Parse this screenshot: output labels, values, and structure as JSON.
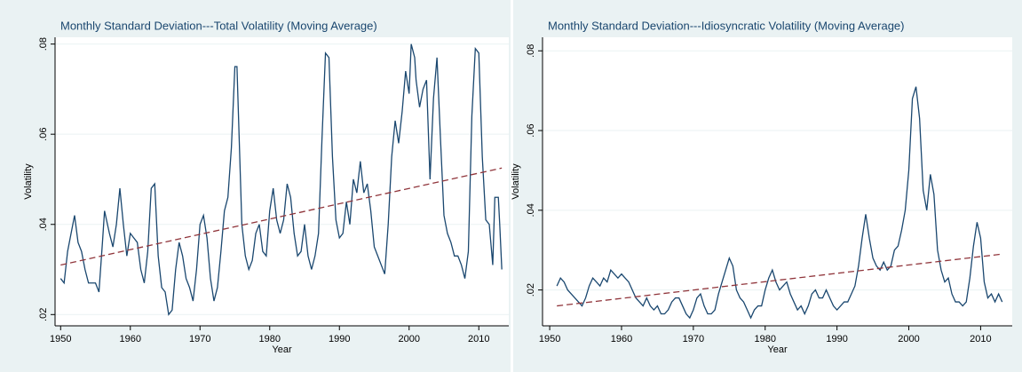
{
  "chart_data": [
    {
      "type": "line",
      "title": "Monthly Standard Deviation---Total Volatility (Moving Average)",
      "xlabel": "Year",
      "ylabel": "Volatility",
      "xlim": [
        1949.2,
        2014.3
      ],
      "xticks": [
        1950,
        1960,
        1970,
        1980,
        1990,
        2000,
        2010
      ],
      "ylim": [
        0.0175,
        0.0815
      ],
      "yticks": [
        {
          "value": 0.02,
          "label": ".02"
        },
        {
          "value": 0.04,
          "label": ".04"
        },
        {
          "value": 0.06,
          "label": ".06"
        },
        {
          "value": 0.08,
          "label": ".08"
        }
      ],
      "grid": true,
      "series": [
        {
          "color": "#1a476f",
          "dash": false,
          "x": [
            1950,
            1950.5,
            1951,
            1951.5,
            1952,
            1952.5,
            1953,
            1953.5,
            1954,
            1955,
            1955.5,
            1956,
            1956.3,
            1957,
            1957.5,
            1958,
            1958.5,
            1959,
            1959.5,
            1960,
            1960.5,
            1961,
            1961.5,
            1962,
            1962.5,
            1963,
            1963.5,
            1964,
            1964.5,
            1965,
            1965.5,
            1966,
            1966.5,
            1967,
            1967.5,
            1968,
            1968.5,
            1969,
            1969.5,
            1970,
            1970.5,
            1971,
            1971.5,
            1972,
            1972.5,
            1973,
            1973.5,
            1974,
            1974.5,
            1975,
            1975.3,
            1975.8,
            1976,
            1976.5,
            1977,
            1977.5,
            1978,
            1978.5,
            1979,
            1979.5,
            1980,
            1980.5,
            1981,
            1981.5,
            1982,
            1982.5,
            1983,
            1983.5,
            1984,
            1984.5,
            1985,
            1985.5,
            1986,
            1986.5,
            1987,
            1987.5,
            1988,
            1988.5,
            1989,
            1989.5,
            1990,
            1990.5,
            1991,
            1991.5,
            1992,
            1992.5,
            1993,
            1993.5,
            1994,
            1994.5,
            1995,
            1995.5,
            1996,
            1996.5,
            1997,
            1997.5,
            1998,
            1998.5,
            1999,
            1999.5,
            2000,
            2000.3,
            2000.8,
            2001,
            2001.5,
            2002,
            2002.5,
            2003,
            2003.5,
            2004,
            2004.5,
            2005,
            2005.5,
            2006,
            2006.5,
            2007,
            2007.5,
            2008,
            2008.5,
            2009,
            2009.5,
            2010,
            2010.5,
            2011,
            2011.5,
            2012,
            2012.3,
            2012.8,
            2013,
            2013.3
          ],
          "values": [
            0.028,
            0.027,
            0.034,
            0.038,
            0.042,
            0.036,
            0.034,
            0.03,
            0.027,
            0.027,
            0.025,
            0.036,
            0.043,
            0.038,
            0.035,
            0.04,
            0.048,
            0.04,
            0.033,
            0.038,
            0.037,
            0.036,
            0.03,
            0.027,
            0.034,
            0.048,
            0.049,
            0.033,
            0.026,
            0.025,
            0.02,
            0.021,
            0.03,
            0.036,
            0.033,
            0.028,
            0.026,
            0.023,
            0.03,
            0.04,
            0.042,
            0.037,
            0.028,
            0.023,
            0.026,
            0.034,
            0.043,
            0.046,
            0.057,
            0.075,
            0.075,
            0.05,
            0.04,
            0.033,
            0.03,
            0.032,
            0.038,
            0.04,
            0.034,
            0.033,
            0.043,
            0.048,
            0.041,
            0.038,
            0.041,
            0.049,
            0.046,
            0.038,
            0.033,
            0.034,
            0.04,
            0.033,
            0.03,
            0.033,
            0.038,
            0.059,
            0.078,
            0.077,
            0.055,
            0.041,
            0.037,
            0.038,
            0.045,
            0.04,
            0.05,
            0.047,
            0.054,
            0.047,
            0.049,
            0.043,
            0.035,
            0.033,
            0.031,
            0.029,
            0.04,
            0.055,
            0.063,
            0.058,
            0.065,
            0.074,
            0.069,
            0.08,
            0.077,
            0.072,
            0.066,
            0.07,
            0.072,
            0.05,
            0.068,
            0.077,
            0.059,
            0.042,
            0.038,
            0.036,
            0.033,
            0.033,
            0.031,
            0.028,
            0.034,
            0.064,
            0.079,
            0.078,
            0.055,
            0.041,
            0.04,
            0.031,
            0.046,
            0.046,
            0.04,
            0.03
          ]
        },
        {
          "color": "#90353b",
          "dash": true,
          "x": [
            1950,
            2013.3
          ],
          "values": [
            0.031,
            0.0525
          ]
        }
      ]
    },
    {
      "type": "line",
      "title": "Monthly Standard Deviation---Idiosyncratic Volatility (Moving Average)",
      "xlabel": "Year",
      "ylabel": "Volatility",
      "xlim": [
        1949.0,
        2014.4
      ],
      "xticks": [
        1950,
        1960,
        1970,
        1980,
        1990,
        2000,
        2010
      ],
      "ylim": [
        0.011,
        0.0834
      ],
      "yticks": [
        {
          "value": 0.02,
          "label": ".02"
        },
        {
          "value": 0.04,
          "label": ".04"
        },
        {
          "value": 0.06,
          "label": ".06"
        },
        {
          "value": 0.08,
          "label": ".08"
        }
      ],
      "grid": true,
      "series": [
        {
          "color": "#1a476f",
          "dash": false,
          "x": [
            1951,
            1951.5,
            1952,
            1952.5,
            1953,
            1954,
            1954.5,
            1955,
            1955.5,
            1956,
            1956.5,
            1957,
            1957.5,
            1958,
            1958.5,
            1959,
            1959.5,
            1960,
            1960.5,
            1961,
            1961.5,
            1962,
            1962.5,
            1963,
            1963.5,
            1964,
            1964.5,
            1965,
            1965.5,
            1966,
            1966.5,
            1967,
            1967.5,
            1968,
            1968.5,
            1969,
            1969.5,
            1970,
            1970.5,
            1971,
            1971.5,
            1972,
            1972.5,
            1973,
            1973.5,
            1974,
            1974.5,
            1975,
            1975.5,
            1976,
            1976.5,
            1977,
            1977.5,
            1978,
            1978.5,
            1979,
            1979.5,
            1980,
            1980.5,
            1981,
            1981.5,
            1982,
            1982.5,
            1983,
            1983.5,
            1984,
            1984.5,
            1985,
            1985.5,
            1986,
            1986.5,
            1987,
            1987.5,
            1988,
            1988.5,
            1989,
            1989.5,
            1990,
            1990.5,
            1991,
            1991.5,
            1992,
            1992.5,
            1993,
            1993.5,
            1994,
            1994.5,
            1995,
            1995.5,
            1996,
            1996.5,
            1997,
            1997.5,
            1998,
            1998.5,
            1999,
            1999.5,
            2000,
            2000.5,
            2001,
            2001.5,
            2002,
            2002.5,
            2003,
            2003.5,
            2004,
            2004.5,
            2005,
            2005.5,
            2006,
            2006.5,
            2007,
            2007.5,
            2008,
            2008.5,
            2009,
            2009.5,
            2010,
            2010.5,
            2011,
            2011.5,
            2012,
            2012.5,
            2013
          ],
          "values": [
            0.021,
            0.023,
            0.022,
            0.02,
            0.019,
            0.017,
            0.016,
            0.018,
            0.021,
            0.023,
            0.022,
            0.021,
            0.023,
            0.022,
            0.025,
            0.024,
            0.023,
            0.024,
            0.023,
            0.022,
            0.02,
            0.018,
            0.017,
            0.016,
            0.018,
            0.016,
            0.015,
            0.016,
            0.014,
            0.014,
            0.015,
            0.017,
            0.018,
            0.018,
            0.016,
            0.014,
            0.013,
            0.015,
            0.018,
            0.019,
            0.016,
            0.014,
            0.014,
            0.015,
            0.019,
            0.022,
            0.025,
            0.028,
            0.026,
            0.02,
            0.018,
            0.017,
            0.015,
            0.013,
            0.015,
            0.016,
            0.016,
            0.02,
            0.023,
            0.025,
            0.022,
            0.02,
            0.021,
            0.022,
            0.019,
            0.017,
            0.015,
            0.016,
            0.014,
            0.016,
            0.019,
            0.02,
            0.018,
            0.018,
            0.02,
            0.018,
            0.016,
            0.015,
            0.016,
            0.017,
            0.017,
            0.019,
            0.021,
            0.026,
            0.033,
            0.039,
            0.033,
            0.028,
            0.026,
            0.025,
            0.027,
            0.025,
            0.026,
            0.03,
            0.031,
            0.035,
            0.04,
            0.05,
            0.068,
            0.071,
            0.063,
            0.045,
            0.04,
            0.049,
            0.044,
            0.03,
            0.025,
            0.022,
            0.023,
            0.019,
            0.017,
            0.017,
            0.016,
            0.017,
            0.023,
            0.031,
            0.037,
            0.033,
            0.022,
            0.018,
            0.019,
            0.017,
            0.019,
            0.017
          ]
        },
        {
          "color": "#90353b",
          "dash": true,
          "x": [
            1951,
            2013
          ],
          "values": [
            0.016,
            0.029
          ]
        }
      ]
    }
  ]
}
